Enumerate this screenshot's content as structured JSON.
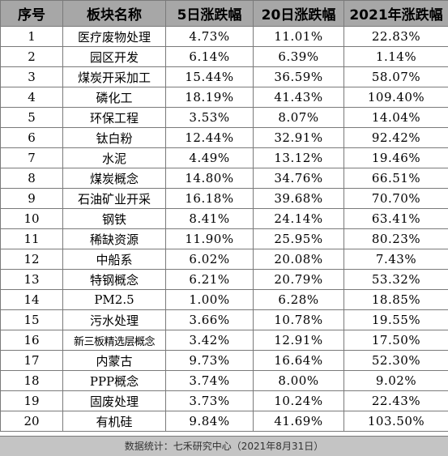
{
  "table": {
    "headers": [
      "序号",
      "板块名称",
      "5日涨跌幅",
      "20日涨跌幅",
      "2021年涨跌幅"
    ],
    "rows": [
      [
        "1",
        "医疗废物处理",
        "4.73%",
        "11.01%",
        "22.83%"
      ],
      [
        "2",
        "园区开发",
        "6.14%",
        "6.39%",
        "1.14%"
      ],
      [
        "3",
        "煤炭开采加工",
        "15.44%",
        "36.59%",
        "58.07%"
      ],
      [
        "4",
        "磷化工",
        "18.19%",
        "41.43%",
        "109.40%"
      ],
      [
        "5",
        "环保工程",
        "3.53%",
        "8.07%",
        "14.04%"
      ],
      [
        "6",
        "钛白粉",
        "12.44%",
        "32.91%",
        "92.42%"
      ],
      [
        "7",
        "水泥",
        "4.49%",
        "13.12%",
        "19.46%"
      ],
      [
        "8",
        "煤炭概念",
        "14.80%",
        "34.76%",
        "66.51%"
      ],
      [
        "9",
        "石油矿业开采",
        "16.18%",
        "39.68%",
        "70.70%"
      ],
      [
        "10",
        "钢铁",
        "8.41%",
        "24.14%",
        "63.41%"
      ],
      [
        "11",
        "稀缺资源",
        "11.90%",
        "25.95%",
        "80.23%"
      ],
      [
        "12",
        "中船系",
        "6.02%",
        "20.08%",
        "7.43%"
      ],
      [
        "13",
        "特钢概念",
        "6.21%",
        "20.79%",
        "53.32%"
      ],
      [
        "14",
        "PM2.5",
        "1.00%",
        "6.28%",
        "18.85%"
      ],
      [
        "15",
        "污水处理",
        "3.66%",
        "10.78%",
        "19.55%"
      ],
      [
        "16",
        "新三板精选层概念",
        "3.42%",
        "12.91%",
        "17.50%"
      ],
      [
        "17",
        "内蒙古",
        "9.73%",
        "16.64%",
        "52.30%"
      ],
      [
        "18",
        "PPP概念",
        "3.74%",
        "8.00%",
        "9.02%"
      ],
      [
        "19",
        "固废处理",
        "3.73%",
        "10.24%",
        "22.43%"
      ],
      [
        "20",
        "有机硅",
        "9.84%",
        "41.69%",
        "103.50%"
      ]
    ]
  },
  "footer": {
    "text": "数据统计：七禾研究中心（2021年8月31日）"
  }
}
